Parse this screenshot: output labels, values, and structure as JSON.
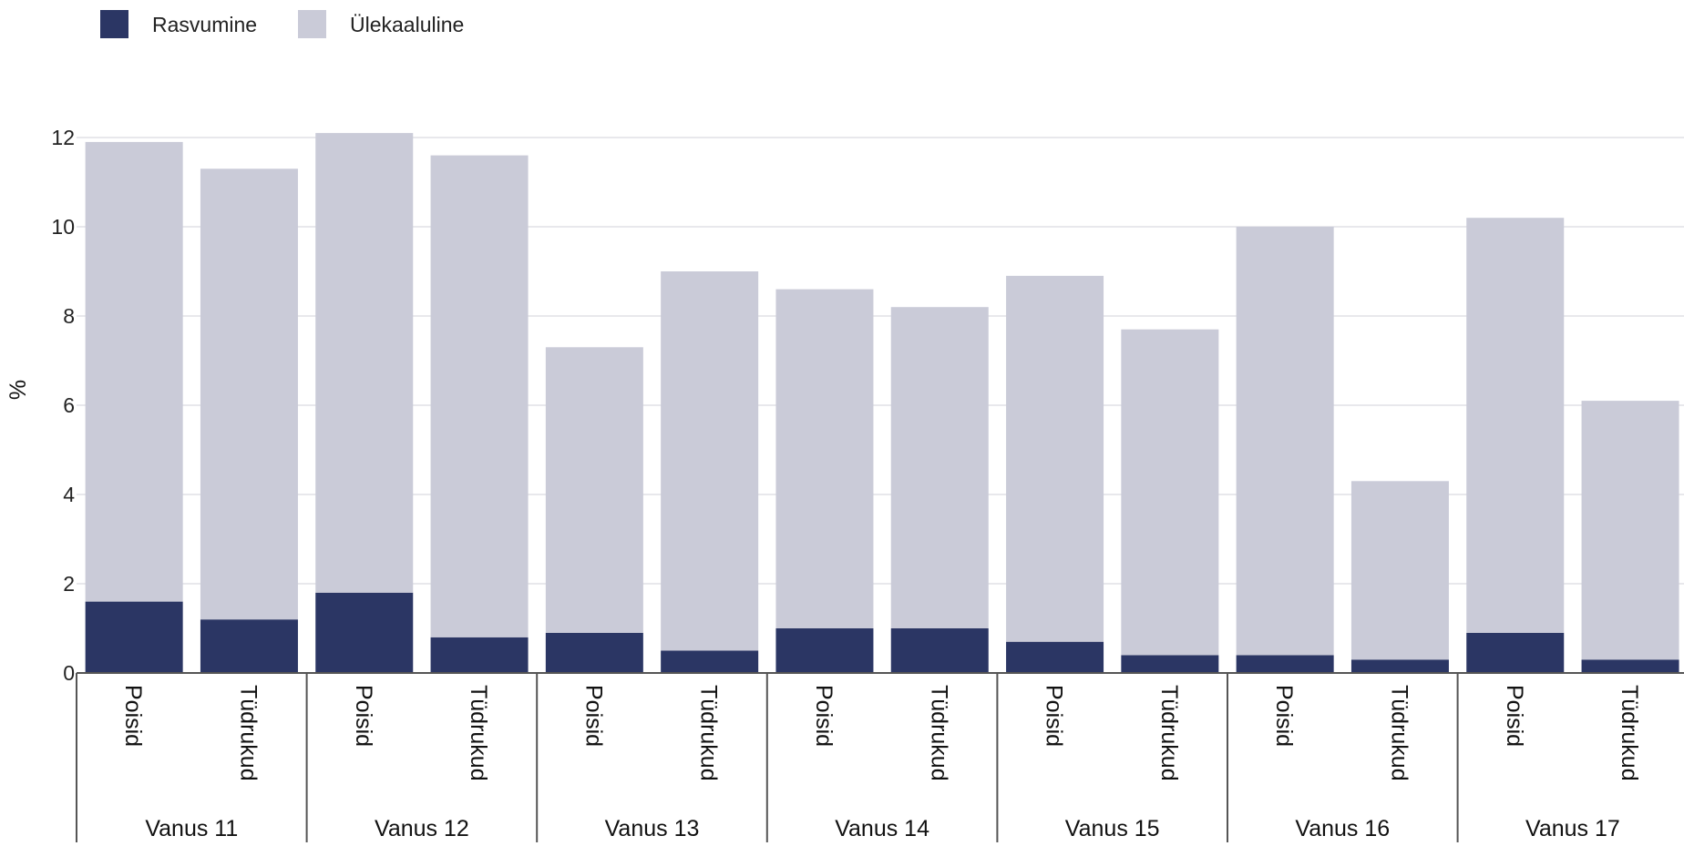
{
  "chart_data": {
    "type": "bar",
    "stacked": true,
    "ylabel": "%",
    "ylim": [
      0,
      12.5
    ],
    "yticks": [
      0,
      2,
      4,
      6,
      8,
      10,
      12
    ],
    "grid": true,
    "legend_position": "top-left",
    "groups": [
      {
        "label": "Vanus 11",
        "categories": [
          "Poisid",
          "Tüdrukud"
        ]
      },
      {
        "label": "Vanus 12",
        "categories": [
          "Poisid",
          "Tüdrukud"
        ]
      },
      {
        "label": "Vanus 13",
        "categories": [
          "Poisid",
          "Tüdrukud"
        ]
      },
      {
        "label": "Vanus 14",
        "categories": [
          "Poisid",
          "Tüdrukud"
        ]
      },
      {
        "label": "Vanus 15",
        "categories": [
          "Poisid",
          "Tüdrukud"
        ]
      },
      {
        "label": "Vanus 16",
        "categories": [
          "Poisid",
          "Tüdrukud"
        ]
      },
      {
        "label": "Vanus 17",
        "categories": [
          "Poisid",
          "Tüdrukud"
        ]
      }
    ],
    "series": [
      {
        "name": "Rasvumine",
        "color": "#2b3664",
        "values": [
          1.6,
          1.2,
          1.8,
          0.8,
          0.9,
          0.5,
          1.0,
          1.0,
          0.7,
          0.4,
          0.4,
          0.3,
          0.9,
          0.3
        ]
      },
      {
        "name": "Ülekaaluline",
        "color": "#cacbd8",
        "values": [
          10.3,
          10.1,
          10.3,
          10.8,
          6.4,
          8.5,
          7.6,
          7.2,
          8.2,
          7.3,
          9.6,
          4.0,
          9.3,
          5.8
        ]
      }
    ]
  }
}
